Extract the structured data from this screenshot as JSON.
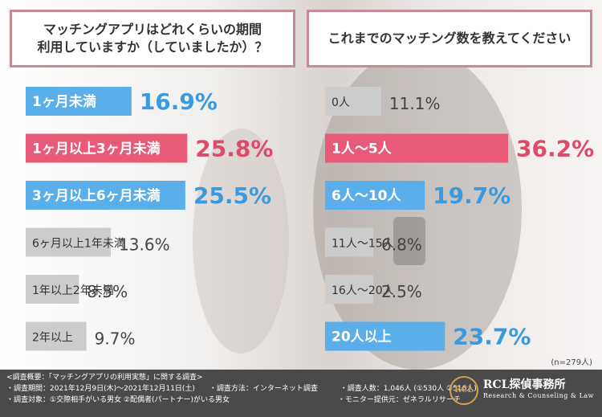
{
  "chart_data": [
    {
      "type": "bar",
      "title": "マッチングアプリはどれくらいの期間\n利用していますか（していましたか）？",
      "categories": [
        "1ヶ月未満",
        "1ヶ月以上3ヶ月未満",
        "3ヶ月以上6ヶ月未満",
        "6ヶ月以上1年未満",
        "1年以上2年未満",
        "2年以上"
      ],
      "values": [
        16.9,
        25.8,
        25.5,
        13.6,
        8.5,
        9.7
      ],
      "value_labels": [
        "16.9%",
        "25.8%",
        "25.5%",
        "13.6%",
        "8.5%",
        "9.7%"
      ],
      "colors": [
        "#5aaeea",
        "#e85a77",
        "#5aaeea",
        "#cccccc",
        "#cccccc",
        "#cccccc"
      ],
      "text_colors": [
        "#ffffff",
        "#ffffff",
        "#ffffff",
        "#333333",
        "#333333",
        "#333333"
      ],
      "value_colors": [
        "#3a9ae0",
        "#e04a68",
        "#3a9ae0",
        "#444444",
        "#444444",
        "#444444"
      ]
    },
    {
      "type": "bar",
      "title": "これまでのマッチング数を教えてください",
      "categories": [
        "0人",
        "1人〜5人",
        "6人〜10人",
        "11人〜15人",
        "16人〜20人",
        "20人以上"
      ],
      "values": [
        11.1,
        36.2,
        19.7,
        6.8,
        2.5,
        23.7
      ],
      "value_labels": [
        "11.1%",
        "36.2%",
        "19.7%",
        "6.8%",
        "2.5%",
        "23.7%"
      ],
      "colors": [
        "#cccccc",
        "#e85a77",
        "#5aaeea",
        "#cccccc",
        "#cccccc",
        "#5aaeea"
      ],
      "text_colors": [
        "#333333",
        "#ffffff",
        "#ffffff",
        "#333333",
        "#333333",
        "#ffffff"
      ],
      "value_colors": [
        "#444444",
        "#e04a68",
        "#3a9ae0",
        "#444444",
        "#444444",
        "#3a9ae0"
      ]
    }
  ],
  "sample_note": "(n=279人)",
  "footer": {
    "line1": "<調査概要：「マッチングアプリの利用実態」に関する調査>",
    "period": "・調査期間：2021年12月9日(木)～2021年12月11日(土)",
    "method": "・調査方法：インターネット調査",
    "count": "・調査人数：1,046人 (①530人 ②516人)",
    "target": "・調査対象：①交際相手がいる男女 ②配偶者(パートナー)がいる男女",
    "provider": "・モニター提供元：ゼネラルリサーチ"
  },
  "logo": {
    "seal": "RCL",
    "name": "RCL探偵事務所",
    "sub": "Research & Counseling & Law"
  }
}
